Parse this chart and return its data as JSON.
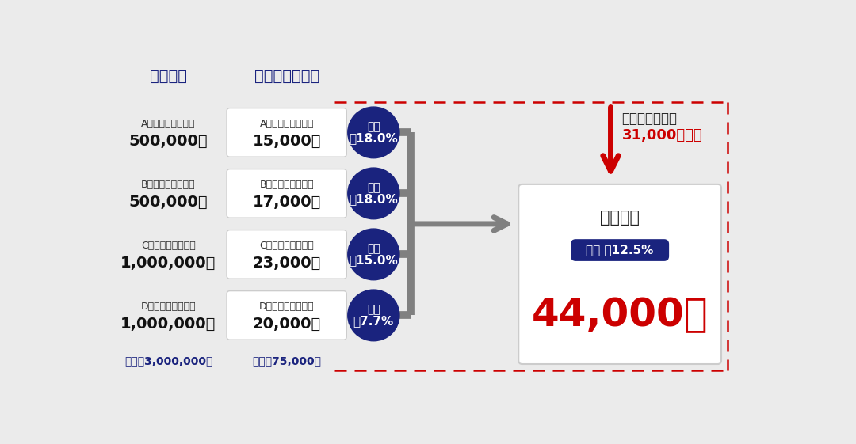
{
  "bg_color": "#ebebeb",
  "title_borrow": "借入金額",
  "title_monthly": "毎月の返済金額",
  "rows": [
    {
      "company": "A社：カードローン",
      "borrow": "500,000円",
      "payment_label": "A社：カードローン",
      "payment": "15,000円",
      "rate_line1": "金利",
      "rate_line2": "年18.0%"
    },
    {
      "company": "B社：カードローン",
      "borrow": "500,000円",
      "payment_label": "B社：カードローン",
      "payment": "17,000円",
      "rate_line1": "金利",
      "rate_line2": "年18.0%"
    },
    {
      "company": "C社：カードローン",
      "borrow": "1,000,000円",
      "payment_label": "C社：カードローン",
      "payment": "23,000円",
      "rate_line1": "金利",
      "rate_line2": "年15.0%"
    },
    {
      "company": "D社：カードローン",
      "borrow": "1,000,000円",
      "payment_label": "D社：カードローン",
      "payment": "20,000円",
      "rate_line1": "金利",
      "rate_line2": "年7.7%"
    }
  ],
  "total_borrow_label": "合計：3,000,000円",
  "total_payment_label": "合計：75,000円",
  "result_title": "おまとめ",
  "result_rate": "金利 年12.5%",
  "result_amount": "44,000円",
  "reduction_label1": "毎月の返済金額",
  "reduction_label2": "31,000円軽減",
  "dark_blue": "#1a237e",
  "red": "#cc0000",
  "gray_line": "#808080",
  "box_bg": "#ffffff",
  "light_bg": "#f5f5f5"
}
